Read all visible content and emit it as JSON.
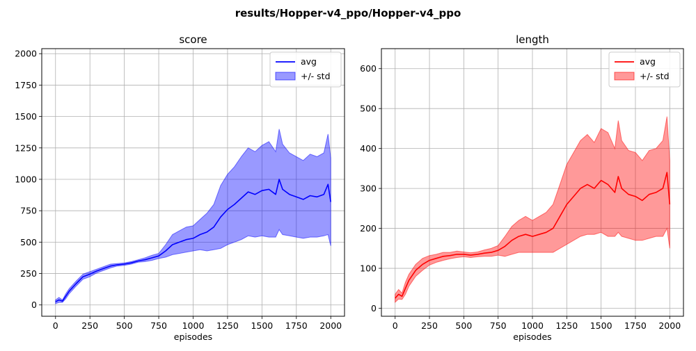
{
  "figure": {
    "suptitle": "results/Hopper-v4_ppo/Hopper-v4_ppo"
  },
  "chart_data": [
    {
      "type": "line",
      "title": "score",
      "xlabel": "episodes",
      "ylabel": "",
      "xlim": [
        -100,
        2100
      ],
      "ylim": [
        -90,
        2040
      ],
      "xticks": [
        0,
        250,
        500,
        750,
        1000,
        1250,
        1500,
        1750,
        2000
      ],
      "yticks": [
        0,
        250,
        500,
        750,
        1000,
        1250,
        1500,
        1750,
        2000
      ],
      "grid": true,
      "legend": {
        "position": "top-right",
        "entries": [
          "avg",
          "+/- std"
        ]
      },
      "color": "#0000ff",
      "band_alpha": 0.4,
      "series": [
        {
          "name": "avg",
          "x": [
            0,
            25,
            50,
            75,
            100,
            150,
            200,
            250,
            300,
            350,
            400,
            450,
            500,
            550,
            600,
            650,
            700,
            750,
            800,
            850,
            900,
            950,
            1000,
            1050,
            1100,
            1150,
            1200,
            1250,
            1300,
            1350,
            1400,
            1450,
            1500,
            1550,
            1600,
            1625,
            1650,
            1700,
            1750,
            1800,
            1850,
            1900,
            1950,
            1980,
            2000
          ],
          "avg": [
            25,
            40,
            30,
            70,
            110,
            170,
            225,
            245,
            270,
            290,
            310,
            320,
            325,
            335,
            350,
            360,
            375,
            390,
            430,
            480,
            500,
            520,
            530,
            560,
            580,
            620,
            700,
            760,
            800,
            850,
            900,
            880,
            910,
            920,
            880,
            1000,
            920,
            880,
            860,
            840,
            870,
            860,
            880,
            960,
            820
          ],
          "std": [
            15,
            20,
            10,
            20,
            20,
            20,
            20,
            20,
            15,
            15,
            15,
            10,
            10,
            10,
            10,
            15,
            20,
            20,
            50,
            80,
            90,
            100,
            100,
            120,
            150,
            180,
            250,
            280,
            300,
            330,
            350,
            340,
            360,
            380,
            340,
            400,
            360,
            330,
            320,
            310,
            330,
            320,
            330,
            400,
            350
          ]
        }
      ]
    },
    {
      "type": "line",
      "title": "length",
      "xlabel": "episodes",
      "ylabel": "",
      "xlim": [
        -100,
        2100
      ],
      "ylim": [
        -20,
        650
      ],
      "xticks": [
        0,
        250,
        500,
        750,
        1000,
        1250,
        1500,
        1750,
        2000
      ],
      "yticks": [
        0,
        100,
        200,
        300,
        400,
        500,
        600
      ],
      "grid": true,
      "legend": {
        "position": "top-right",
        "entries": [
          "avg",
          "+/- std"
        ]
      },
      "color": "#ff0000",
      "band_alpha": 0.4,
      "series": [
        {
          "name": "avg",
          "x": [
            0,
            25,
            50,
            75,
            100,
            150,
            200,
            250,
            300,
            350,
            400,
            450,
            500,
            550,
            600,
            650,
            700,
            750,
            800,
            850,
            900,
            950,
            1000,
            1050,
            1100,
            1150,
            1200,
            1250,
            1300,
            1350,
            1400,
            1450,
            1500,
            1550,
            1600,
            1625,
            1650,
            1700,
            1750,
            1800,
            1850,
            1900,
            1950,
            1980,
            2000
          ],
          "avg": [
            25,
            35,
            30,
            50,
            70,
            95,
            110,
            120,
            125,
            130,
            132,
            135,
            135,
            133,
            135,
            138,
            140,
            145,
            155,
            170,
            180,
            185,
            180,
            185,
            190,
            200,
            230,
            260,
            280,
            300,
            310,
            300,
            320,
            310,
            290,
            330,
            300,
            285,
            280,
            270,
            285,
            290,
            300,
            340,
            260
          ],
          "std": [
            10,
            12,
            8,
            15,
            15,
            15,
            15,
            12,
            10,
            10,
            8,
            8,
            6,
            6,
            6,
            8,
            10,
            12,
            25,
            35,
            40,
            45,
            40,
            45,
            50,
            60,
            80,
            100,
            110,
            120,
            125,
            115,
            130,
            130,
            110,
            140,
            120,
            110,
            110,
            100,
            110,
            110,
            120,
            140,
            110
          ]
        }
      ]
    }
  ]
}
